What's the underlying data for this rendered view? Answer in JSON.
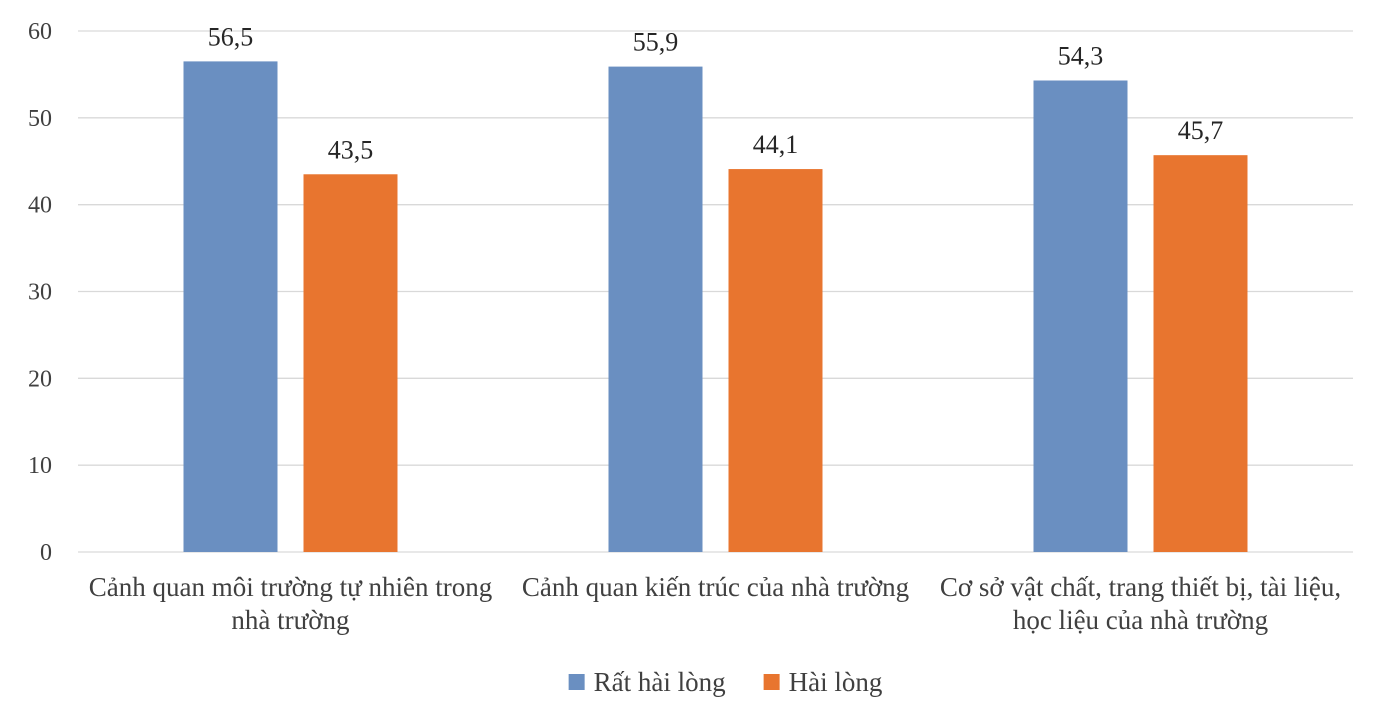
{
  "chart_data": {
    "type": "bar",
    "title": "",
    "xlabel": "",
    "ylabel": "",
    "categories": [
      [
        "Cảnh quan  môi trường tự nhiên trong",
        "nhà trường"
      ],
      [
        "Cảnh quan  kiến trúc của nhà trường"
      ],
      [
        "Cơ sở vật chất, trang thiết bị, tài liệu,",
        "học liệu của nhà trường"
      ]
    ],
    "series": [
      {
        "name": "Rất hài lòng",
        "color": "#6a8fc1",
        "values": [
          56.5,
          55.9,
          54.3
        ],
        "labels": [
          "56,5",
          "55,9",
          "54,3"
        ]
      },
      {
        "name": "Hài lòng",
        "color": "#e8752f",
        "values": [
          43.5,
          44.1,
          45.7
        ],
        "labels": [
          "43,5",
          "44,1",
          "45,7"
        ]
      }
    ],
    "ylim": [
      0,
      60
    ],
    "yticks": [
      0,
      10,
      20,
      30,
      40,
      50,
      60
    ],
    "grid": true,
    "gridColor": "#d9d9d9",
    "legend": "bottom-center"
  }
}
